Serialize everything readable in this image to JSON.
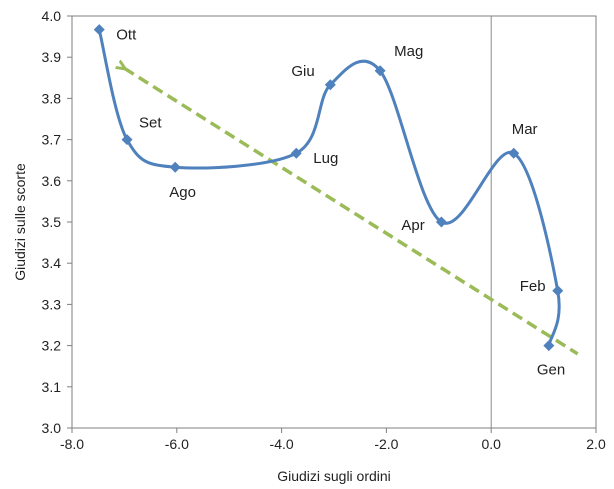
{
  "chart_data": {
    "type": "line",
    "xlabel": "Giudizi sugli ordini",
    "ylabel": "Giudizi sulle scorte",
    "xlim": [
      -8.0,
      2.0
    ],
    "ylim": [
      3.0,
      4.0
    ],
    "x_ticks": [
      "-8.0",
      "-6.0",
      "-4.0",
      "-2.0",
      "0.0",
      "2.0"
    ],
    "y_ticks": [
      "3.0",
      "3.1",
      "3.2",
      "3.3",
      "3.4",
      "3.5",
      "3.6",
      "3.7",
      "3.8",
      "3.9",
      "4.0"
    ],
    "series": [
      {
        "color": "#4f81bd",
        "points": [
          {
            "label": "Gen",
            "x": 1.1,
            "y": 3.2
          },
          {
            "label": "Feb",
            "x": 1.27,
            "y": 3.333
          },
          {
            "label": "Mar",
            "x": 0.43,
            "y": 3.667
          },
          {
            "label": "Apr",
            "x": -0.95,
            "y": 3.5
          },
          {
            "label": "Mag",
            "x": -2.12,
            "y": 3.867
          },
          {
            "label": "Giu",
            "x": -3.07,
            "y": 3.833
          },
          {
            "label": "Lug",
            "x": -3.72,
            "y": 3.667
          },
          {
            "label": "Ago",
            "x": -6.03,
            "y": 3.633
          },
          {
            "label": "Set",
            "x": -6.95,
            "y": 3.7
          },
          {
            "label": "Ott",
            "x": -7.48,
            "y": 3.967
          }
        ]
      }
    ],
    "trend": {
      "color": "#9bbb59",
      "style": "dashed",
      "arrow": "start",
      "start": {
        "x": -7.0,
        "y": 3.873
      },
      "end": {
        "x": 1.65,
        "y": 3.18
      }
    },
    "vertical_line_x": 0.0,
    "grid": false,
    "legend": "none"
  }
}
